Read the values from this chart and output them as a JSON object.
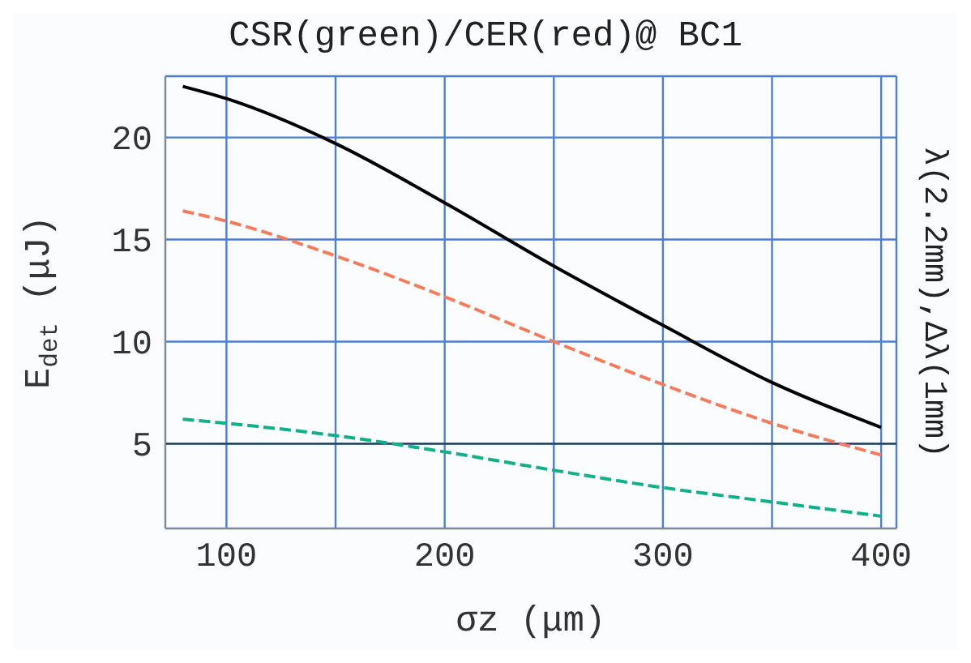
{
  "chart_data": {
    "type": "line",
    "title": "CSR(green)/CER(red)@ BC1",
    "xlabel": "σz  (μm)",
    "ylabel": "E$_{det}$ (μJ)",
    "y2label": "λ(2.2mm),Δλ(1mm)",
    "x": [
      80,
      100,
      150,
      200,
      250,
      300,
      350,
      400
    ],
    "series": [
      {
        "color": "#000000",
        "line_style": "solid",
        "values": [
          22.5,
          21.9,
          19.7,
          16.8,
          13.7,
          10.8,
          8.0,
          5.8
        ]
      },
      {
        "color": "#f47c5c",
        "line_style": "dashed",
        "values": [
          16.4,
          15.9,
          14.2,
          12.2,
          10.0,
          7.9,
          6.0,
          4.45
        ]
      },
      {
        "color": "#10b088",
        "line_style": "dashed",
        "values": [
          6.2,
          6.0,
          5.4,
          4.6,
          3.7,
          2.85,
          2.15,
          1.45
        ]
      }
    ],
    "xlim": [
      72,
      407
    ],
    "xticks": [
      100,
      {
        "value": 150,
        "label": null
      },
      200,
      {
        "value": 250,
        "label": null
      },
      300,
      {
        "value": 350,
        "label": null
      },
      400
    ],
    "ylim": [
      0.85,
      23
    ],
    "yticks": [
      5,
      10,
      15,
      20
    ],
    "grid": true,
    "marker": "none",
    "ref_lines": [
      {
        "axis": "y",
        "value": 5,
        "color": "#333333"
      }
    ]
  }
}
